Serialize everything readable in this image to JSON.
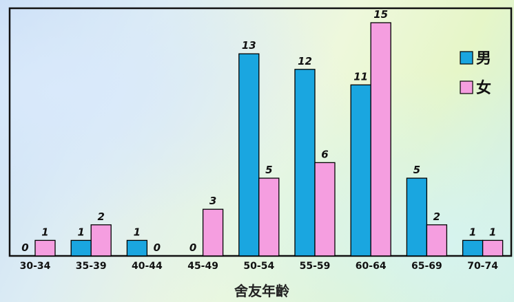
{
  "chart_data": {
    "type": "bar",
    "categories": [
      "30-34",
      "35-39",
      "40-44",
      "45-49",
      "50-54",
      "55-59",
      "60-64",
      "65-69",
      "70-74"
    ],
    "series": [
      {
        "name": "男",
        "color": "#1aa6e0",
        "values": [
          0,
          1,
          1,
          0,
          13,
          12,
          11,
          5,
          1
        ]
      },
      {
        "name": "女",
        "color": "#f59ee0",
        "values": [
          1,
          2,
          0,
          3,
          5,
          6,
          15,
          2,
          1
        ]
      }
    ],
    "title": "",
    "xlabel": "舍友年齡",
    "ylabel": "",
    "ylim": [
      0,
      15
    ],
    "grid": false,
    "legend": "top-right"
  }
}
